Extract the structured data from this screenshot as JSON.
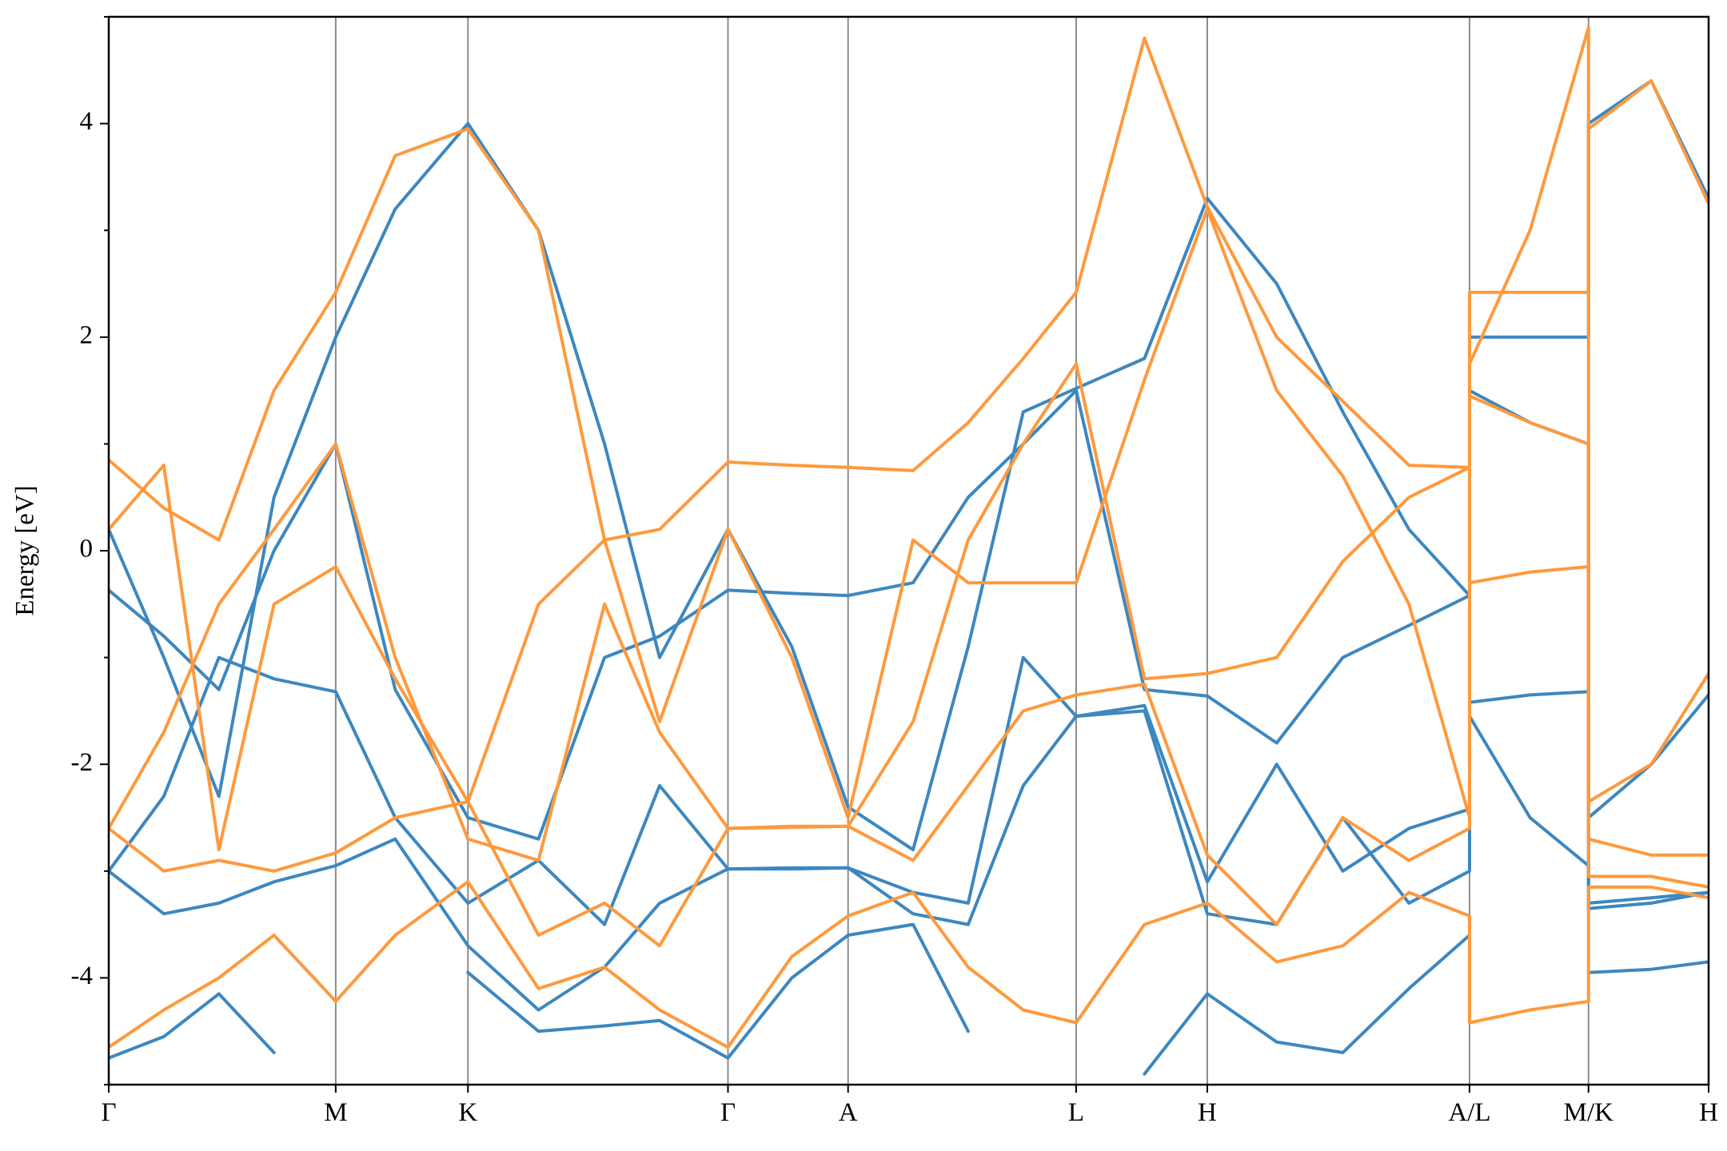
{
  "chart_data": {
    "type": "line",
    "ylabel": "Energy [eV]",
    "x": [
      0,
      0.5,
      1.0,
      1.5,
      2.06,
      2.6,
      3.26,
      3.9,
      4.5,
      5.0,
      5.62,
      6.2,
      6.71,
      7.3,
      7.8,
      8.3,
      8.78,
      9.4,
      9.97,
      10.6,
      11.2,
      11.8,
      12.35,
      12.35,
      12.9,
      13.43,
      13.43,
      14.0,
      14.52
    ],
    "xlim": [
      0,
      14.52
    ],
    "xticks": [
      {
        "value": 0,
        "label": "Γ"
      },
      {
        "value": 2.06,
        "label": "M"
      },
      {
        "value": 3.26,
        "label": "K"
      },
      {
        "value": 5.62,
        "label": "Γ"
      },
      {
        "value": 6.71,
        "label": "A"
      },
      {
        "value": 8.78,
        "label": "L"
      },
      {
        "value": 9.97,
        "label": "H"
      },
      {
        "value": 12.35,
        "label": "A/L"
      },
      {
        "value": 13.43,
        "label": "M/K"
      },
      {
        "value": 14.52,
        "label": "H"
      }
    ],
    "ylim": [
      -5,
      5
    ],
    "yticks": [
      -4,
      -2,
      0,
      2,
      4
    ],
    "yminor": [
      -5,
      -3,
      -1,
      1,
      3,
      5
    ],
    "vgrid": true,
    "series": [
      {
        "color": "#3d87bf",
        "values": [
          -4.75,
          -4.55,
          -4.15,
          -4.7,
          null,
          null,
          -3.95,
          -4.5,
          -4.45,
          -4.4,
          -4.75,
          -4.0,
          -3.6,
          -3.5,
          -4.5,
          null,
          null,
          -4.9,
          -4.15,
          -4.6,
          -4.7,
          -4.1,
          -3.6,
          null,
          null,
          null,
          -3.95,
          -3.92,
          -3.85
        ]
      },
      {
        "color": "#3d87bf",
        "values": [
          -3.0,
          -3.4,
          -3.3,
          -3.1,
          -2.95,
          -2.7,
          -3.7,
          -4.3,
          -3.9,
          -3.3,
          -2.98,
          -2.98,
          -2.97,
          -3.4,
          -3.5,
          -2.2,
          -1.55,
          -1.5,
          -3.4,
          -3.5,
          -2.5,
          -3.3,
          -3.0,
          -1.55,
          -2.5,
          -2.95,
          -3.35,
          -3.3,
          -3.2
        ]
      },
      {
        "color": "#3d87bf",
        "values": [
          -3.0,
          -2.3,
          -1.0,
          -1.2,
          -1.32,
          -2.5,
          -3.3,
          -2.9,
          -3.5,
          -2.2,
          -2.98,
          -2.97,
          -2.97,
          -3.2,
          -3.3,
          -1.0,
          -1.55,
          -1.45,
          -3.1,
          -2.0,
          -3.0,
          -2.6,
          -2.42,
          -1.42,
          -1.35,
          -1.32,
          -3.3,
          -3.25,
          -3.2
        ]
      },
      {
        "color": "#3d87bf",
        "values": [
          -0.37,
          -0.8,
          -1.3,
          0.0,
          1.0,
          -1.3,
          -2.5,
          -2.7,
          -1.0,
          -0.8,
          -0.37,
          -0.4,
          -0.42,
          -0.3,
          0.5,
          1.0,
          1.5,
          -1.3,
          -1.36,
          -1.8,
          -1.0,
          -0.7,
          -0.42,
          1.5,
          1.2,
          1.0,
          -2.5,
          -2.0,
          -1.35
        ]
      },
      {
        "color": "#3d87bf",
        "values": [
          0.2,
          -1.0,
          -2.3,
          0.5,
          2.0,
          3.2,
          4.0,
          3.0,
          1.0,
          -1.0,
          0.2,
          -0.9,
          -2.4,
          -2.8,
          -0.9,
          1.3,
          1.52,
          1.8,
          3.3,
          2.5,
          1.3,
          0.2,
          -0.42,
          2.0,
          2.0,
          2.0,
          4.0,
          4.4,
          3.3
        ]
      },
      {
        "color": "#ff993d",
        "values": [
          -4.65,
          -4.3,
          -4.0,
          -3.6,
          -4.22,
          -3.6,
          -3.1,
          -4.1,
          -3.9,
          -4.3,
          -4.65,
          -3.8,
          -3.42,
          -3.2,
          -3.9,
          -4.3,
          -4.42,
          -3.5,
          -3.3,
          -3.85,
          -3.7,
          -3.2,
          -3.42,
          -4.42,
          -4.3,
          -4.22,
          -3.15,
          -3.15,
          -3.25
        ]
      },
      {
        "color": "#ff993d",
        "values": [
          -2.6,
          -3.0,
          -2.9,
          -3.0,
          -2.83,
          -2.5,
          -2.35,
          -3.6,
          -3.3,
          -3.7,
          -2.6,
          -2.59,
          -2.58,
          -2.9,
          -2.2,
          -1.5,
          -1.35,
          -1.25,
          -2.85,
          -3.5,
          -2.5,
          -2.9,
          -2.6,
          -0.3,
          -0.2,
          -0.15,
          -3.05,
          -3.05,
          -3.15
        ]
      },
      {
        "color": "#ff993d",
        "values": [
          -2.6,
          -1.7,
          -0.5,
          0.2,
          1.0,
          -1.0,
          -2.7,
          -2.9,
          -0.5,
          -1.7,
          -2.6,
          -2.58,
          -2.58,
          -1.6,
          0.1,
          1.0,
          1.75,
          -1.2,
          -1.15,
          -1.0,
          -0.1,
          0.5,
          0.78,
          1.45,
          1.2,
          1.0,
          -2.7,
          -2.85,
          -2.85
        ]
      },
      {
        "color": "#ff993d",
        "values": [
          0.2,
          0.8,
          -2.8,
          -0.5,
          -0.15,
          -1.2,
          -2.35,
          -0.5,
          0.1,
          -1.6,
          0.2,
          -1.0,
          -2.5,
          0.1,
          -0.3,
          -0.3,
          -0.3,
          1.6,
          3.2,
          1.5,
          0.7,
          -0.5,
          -2.5,
          1.75,
          3.0,
          4.9,
          -2.35,
          -2.0,
          -1.15
        ]
      },
      {
        "color": "#ff993d",
        "values": [
          0.85,
          0.4,
          0.1,
          1.5,
          2.42,
          3.7,
          3.95,
          3.0,
          0.1,
          0.2,
          0.83,
          0.8,
          0.78,
          0.75,
          1.2,
          1.8,
          2.42,
          4.8,
          3.22,
          2.0,
          1.4,
          0.8,
          0.78,
          2.42,
          2.42,
          2.42,
          3.95,
          4.4,
          3.25
        ]
      }
    ]
  }
}
